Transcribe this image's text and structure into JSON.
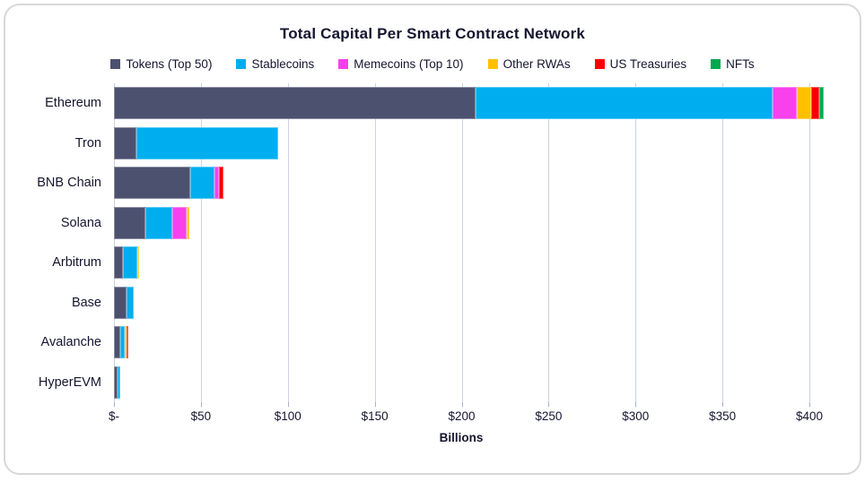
{
  "title": "Total Capital Per Smart Contract Network",
  "chart_data": {
    "type": "bar",
    "orientation": "horizontal",
    "stacked": true,
    "title": "Total Capital Per Smart Contract Network",
    "xlabel": "Billions",
    "ylabel": "",
    "xlim": [
      0,
      400
    ],
    "tick_step": 50,
    "x_ticks": [
      "$-",
      "$50",
      "$100",
      "$150",
      "$200",
      "$250",
      "$300",
      "$350",
      "$400"
    ],
    "grid": "vertical",
    "legend_position": "top",
    "categories": [
      "Ethereum",
      "Tron",
      "BNB Chain",
      "Solana",
      "Arbitrum",
      "Base",
      "Avalanche",
      "HyperEVM"
    ],
    "series": [
      {
        "name": "Tokens (Top 50)",
        "color": "#4d5170",
        "values": [
          208,
          13,
          44,
          18,
          5,
          7,
          3.5,
          2
        ]
      },
      {
        "name": "Stablecoins",
        "color": "#00aeef",
        "values": [
          171,
          81.5,
          14,
          15.5,
          8.5,
          4.5,
          2.5,
          1.5
        ]
      },
      {
        "name": "Memecoins (Top 10)",
        "color": "#f840ec",
        "values": [
          14,
          0,
          2.5,
          8.5,
          0,
          0,
          0,
          0
        ]
      },
      {
        "name": "Other RWAs",
        "color": "#ffc000",
        "values": [
          8,
          0,
          0,
          1.5,
          1,
          0,
          1,
          0
        ]
      },
      {
        "name": "US Treasuries",
        "color": "#f80000",
        "values": [
          4.5,
          0,
          2.5,
          0,
          0,
          0,
          0.5,
          0
        ]
      },
      {
        "name": "NFTs",
        "color": "#00a94f",
        "values": [
          2.5,
          0,
          0,
          0,
          0,
          0,
          0,
          0
        ]
      }
    ]
  },
  "colors": {
    "text": "#14152f",
    "grid": "#cdd1e4",
    "tick": "#a9aecb",
    "frame_border": "#d8d8d8",
    "background": "#ffffff"
  }
}
